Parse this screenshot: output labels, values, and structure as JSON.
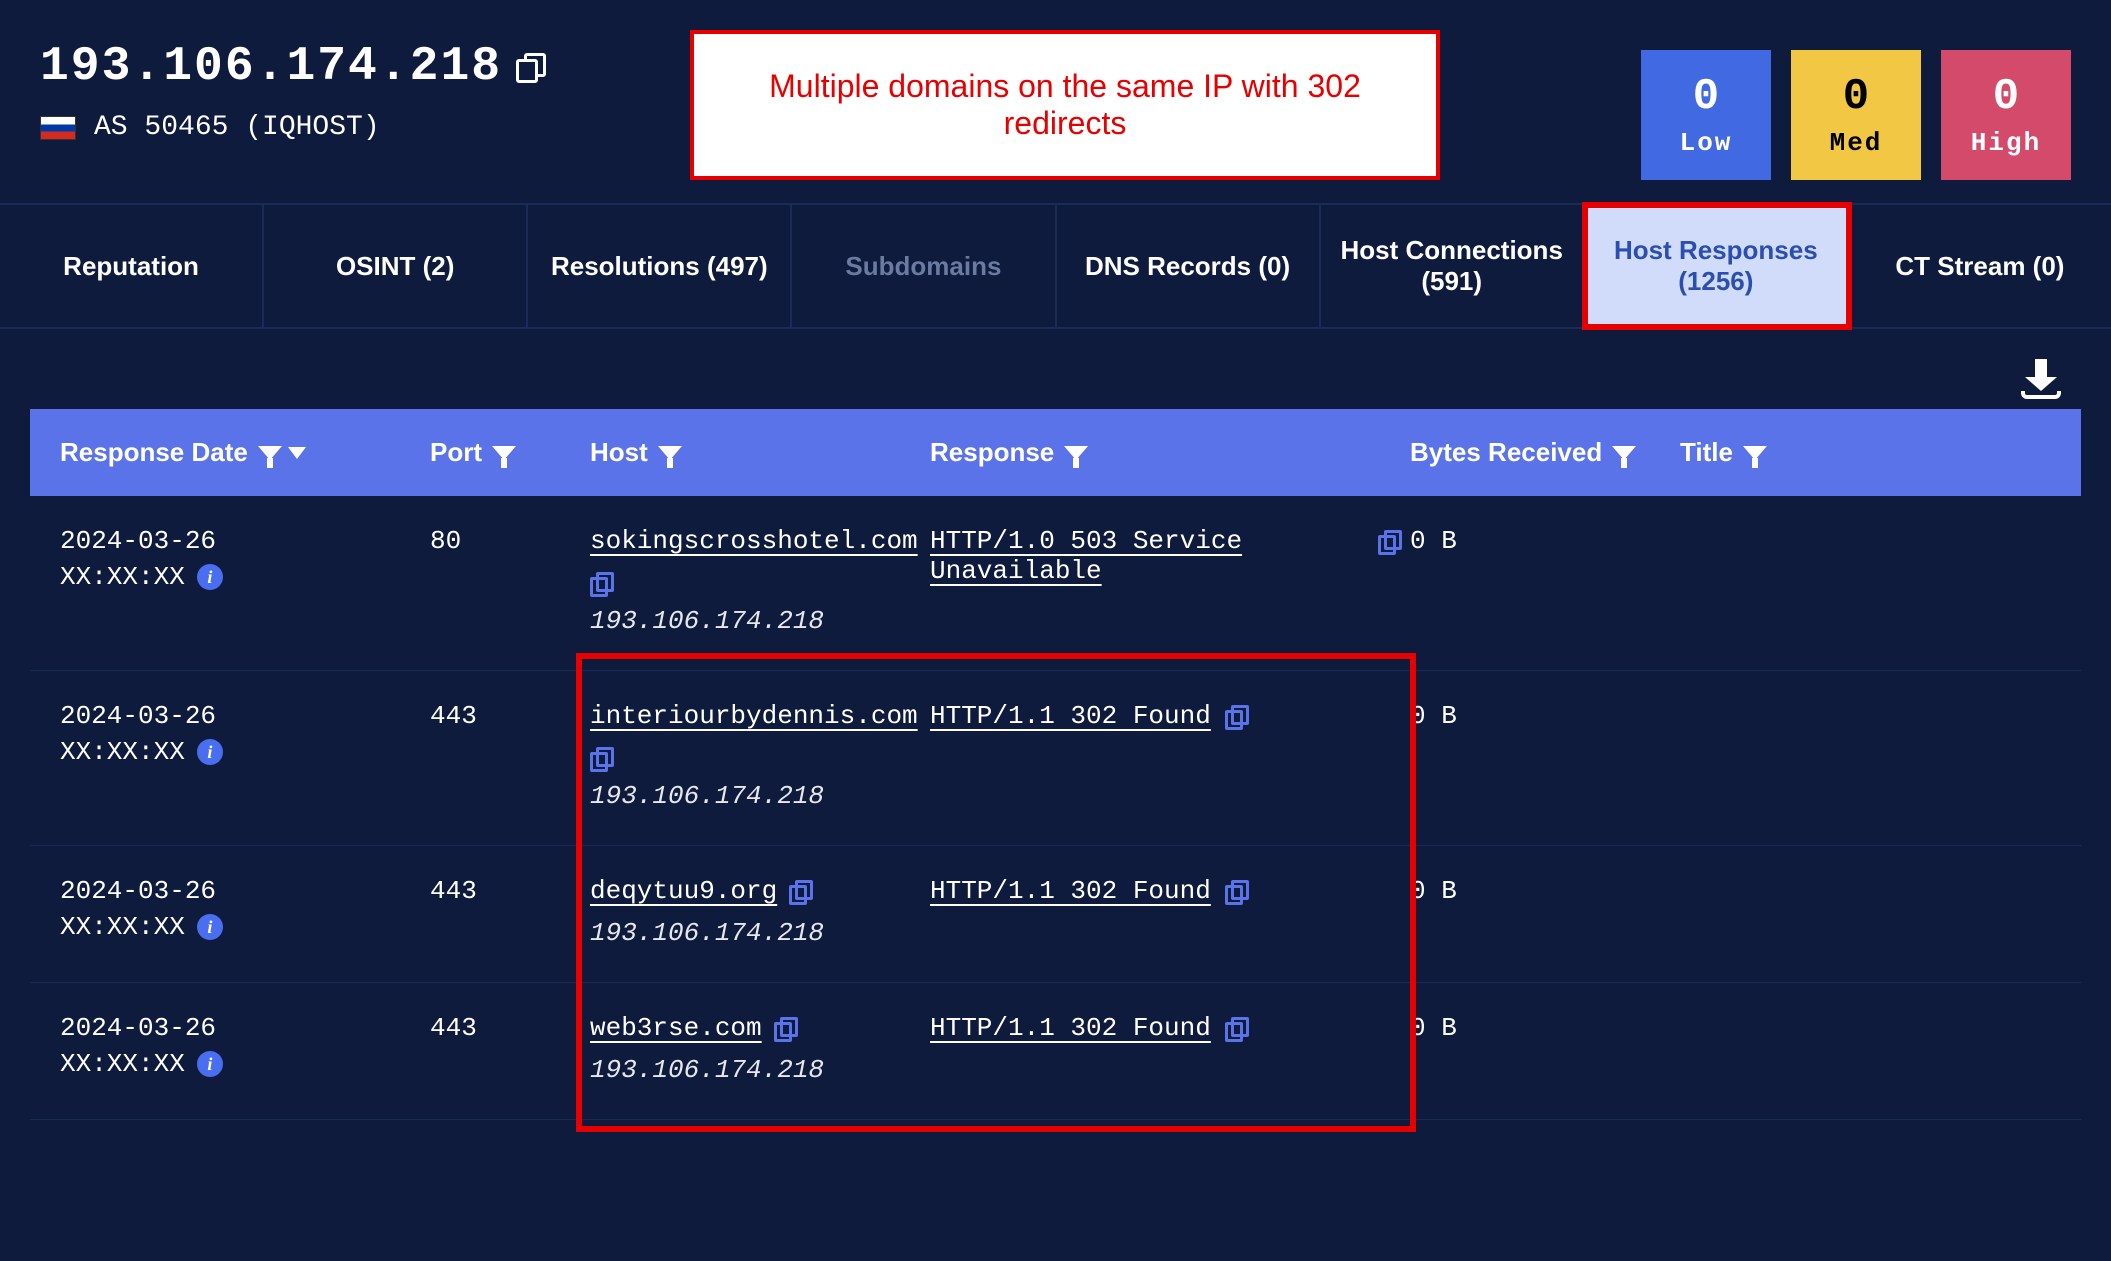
{
  "header": {
    "ip": "193.106.174.218",
    "as_label": "AS 50465 (IQHOST)",
    "flag_country": "ru"
  },
  "callout": {
    "text": "Multiple domains on the same IP with 302 redirects"
  },
  "badges": {
    "low": {
      "count": "0",
      "label": "Low",
      "bg": "#4169e1"
    },
    "med": {
      "count": "0",
      "label": "Med",
      "bg": "#f2c744"
    },
    "high": {
      "count": "0",
      "label": "High",
      "bg": "#d34a6a"
    }
  },
  "tabs": [
    {
      "label": "Reputation",
      "state": "normal"
    },
    {
      "label": "OSINT (2)",
      "state": "normal"
    },
    {
      "label": "Resolutions (497)",
      "state": "normal"
    },
    {
      "label": "Subdomains",
      "state": "disabled"
    },
    {
      "label": "DNS Records (0)",
      "state": "normal"
    },
    {
      "label": "Host Connections (591)",
      "state": "normal"
    },
    {
      "label": "Host Responses (1256)",
      "state": "active"
    },
    {
      "label": "CT Stream (0)",
      "state": "normal"
    }
  ],
  "columns": {
    "date": "Response Date",
    "port": "Port",
    "host": "Host",
    "response": "Response",
    "bytes": "Bytes Received",
    "title": "Title"
  },
  "rows": [
    {
      "date1": "2024-03-26",
      "date2": "XX:XX:XX",
      "port": "80",
      "host": "sokingscrosshotel.com",
      "host_ip": "193.106.174.218",
      "response": "HTTP/1.0 503 Service Unavailable",
      "bytes": "0 B",
      "title": ""
    },
    {
      "date1": "2024-03-26",
      "date2": "XX:XX:XX",
      "port": "443",
      "host": "interiourbydennis.com",
      "host_ip": "193.106.174.218",
      "response": "HTTP/1.1 302 Found",
      "bytes": "0 B",
      "title": ""
    },
    {
      "date1": "2024-03-26",
      "date2": "XX:XX:XX",
      "port": "443",
      "host": "deqytuu9.org",
      "host_ip": "193.106.174.218",
      "response": "HTTP/1.1 302 Found",
      "bytes": "0 B",
      "title": ""
    },
    {
      "date1": "2024-03-26",
      "date2": "XX:XX:XX",
      "port": "443",
      "host": "web3rse.com",
      "host_ip": "193.106.174.218",
      "response": "HTTP/1.1 302 Found",
      "bytes": "0 B",
      "title": ""
    }
  ],
  "colors": {
    "background": "#0f1b3d",
    "accent_blue": "#5a73e8",
    "border": "#1a2b5a",
    "callout_border": "#e60000",
    "highlight_box": "#e60000"
  },
  "highlight_box": {
    "top_row_index": 1,
    "bottom_row_index": 3,
    "covers_columns": [
      "host",
      "response"
    ]
  }
}
